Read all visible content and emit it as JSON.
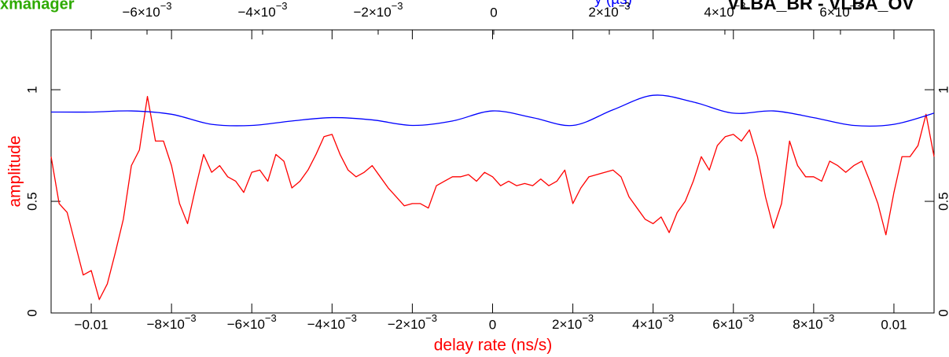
{
  "window_title": "xmanager",
  "chart_data": {
    "type": "line",
    "title": "VLBA_BR - VLBA_OV",
    "x_label": "delay rate (ns/s)",
    "y_label": "amplitude",
    "x2_label": "y (µs)",
    "xlim": [
      -0.011,
      0.011
    ],
    "ylim": [
      0,
      1.268
    ],
    "x2lim": [
      -0.00766,
      0.00762
    ],
    "xticks": [
      {
        "value": -0.01,
        "label": "−0.01"
      },
      {
        "value": -0.008,
        "label": "−8×10−3"
      },
      {
        "value": -0.006,
        "label": "−6×10−3"
      },
      {
        "value": -0.004,
        "label": "−4×10−3"
      },
      {
        "value": -0.002,
        "label": "−2×10−3"
      },
      0,
      {
        "value": 0.002,
        "label": "2×10−3"
      },
      {
        "value": 0.004,
        "label": "4×10−3"
      },
      {
        "value": 0.006,
        "label": "6×10−3"
      },
      {
        "value": 0.008,
        "label": "8×10−3"
      },
      0.01
    ],
    "x2ticks": [
      {
        "value": -0.006,
        "label": "−6×10−3"
      },
      {
        "value": -0.004,
        "label": "−4×10−3"
      },
      {
        "value": -0.002,
        "label": "−2×10−3"
      },
      0,
      {
        "value": 0.002,
        "label": "2×10−3"
      },
      {
        "value": 0.004,
        "label": "4×10−3"
      },
      {
        "value": 0.006,
        "label": "6×10−3"
      }
    ],
    "yticks": [
      0,
      0.5,
      1
    ],
    "x_label_color": "#ff0000",
    "x2_label_color": "#0000ff",
    "series": [
      {
        "color": "#ff0000",
        "x_start": -0.011,
        "x_step": 0.0002,
        "values": [
          0.7,
          0.49,
          0.45,
          0.31,
          0.17,
          0.19,
          0.06,
          0.13,
          0.27,
          0.42,
          0.66,
          0.73,
          0.97,
          0.77,
          0.77,
          0.66,
          0.49,
          0.4,
          0.56,
          0.71,
          0.63,
          0.66,
          0.61,
          0.59,
          0.54,
          0.63,
          0.64,
          0.59,
          0.71,
          0.68,
          0.56,
          0.59,
          0.64,
          0.71,
          0.79,
          0.8,
          0.71,
          0.64,
          0.61,
          0.63,
          0.66,
          0.61,
          0.56,
          0.52,
          0.48,
          0.49,
          0.49,
          0.47,
          0.57,
          0.59,
          0.61,
          0.61,
          0.62,
          0.59,
          0.63,
          0.61,
          0.57,
          0.59,
          0.57,
          0.58,
          0.57,
          0.6,
          0.57,
          0.59,
          0.64,
          0.49,
          0.56,
          0.61,
          0.62,
          0.63,
          0.64,
          0.61,
          0.52,
          0.47,
          0.42,
          0.4,
          0.43,
          0.36,
          0.45,
          0.5,
          0.59,
          0.7,
          0.64,
          0.75,
          0.79,
          0.8,
          0.77,
          0.82,
          0.7,
          0.52,
          0.38,
          0.49,
          0.77,
          0.66,
          0.61,
          0.61,
          0.59,
          0.68,
          0.66,
          0.63,
          0.66,
          0.68,
          0.59,
          0.49,
          0.35,
          0.54,
          0.7,
          0.7,
          0.75,
          0.89,
          0.7
        ]
      },
      {
        "color": "#0000ff",
        "x": [
          -0.011,
          -0.01,
          -0.009,
          -0.008,
          -0.007,
          -0.006,
          -0.005,
          -0.004,
          -0.003,
          -0.002,
          -0.001,
          0,
          0.001,
          0.002,
          0.003,
          0.004,
          0.005,
          0.006,
          0.007,
          0.008,
          0.009,
          0.01,
          0.011
        ],
        "values": [
          0.9,
          0.9,
          0.905,
          0.89,
          0.845,
          0.84,
          0.86,
          0.875,
          0.865,
          0.84,
          0.86,
          0.905,
          0.875,
          0.84,
          0.91,
          0.975,
          0.945,
          0.895,
          0.905,
          0.875,
          0.84,
          0.845,
          0.895
        ]
      }
    ]
  }
}
